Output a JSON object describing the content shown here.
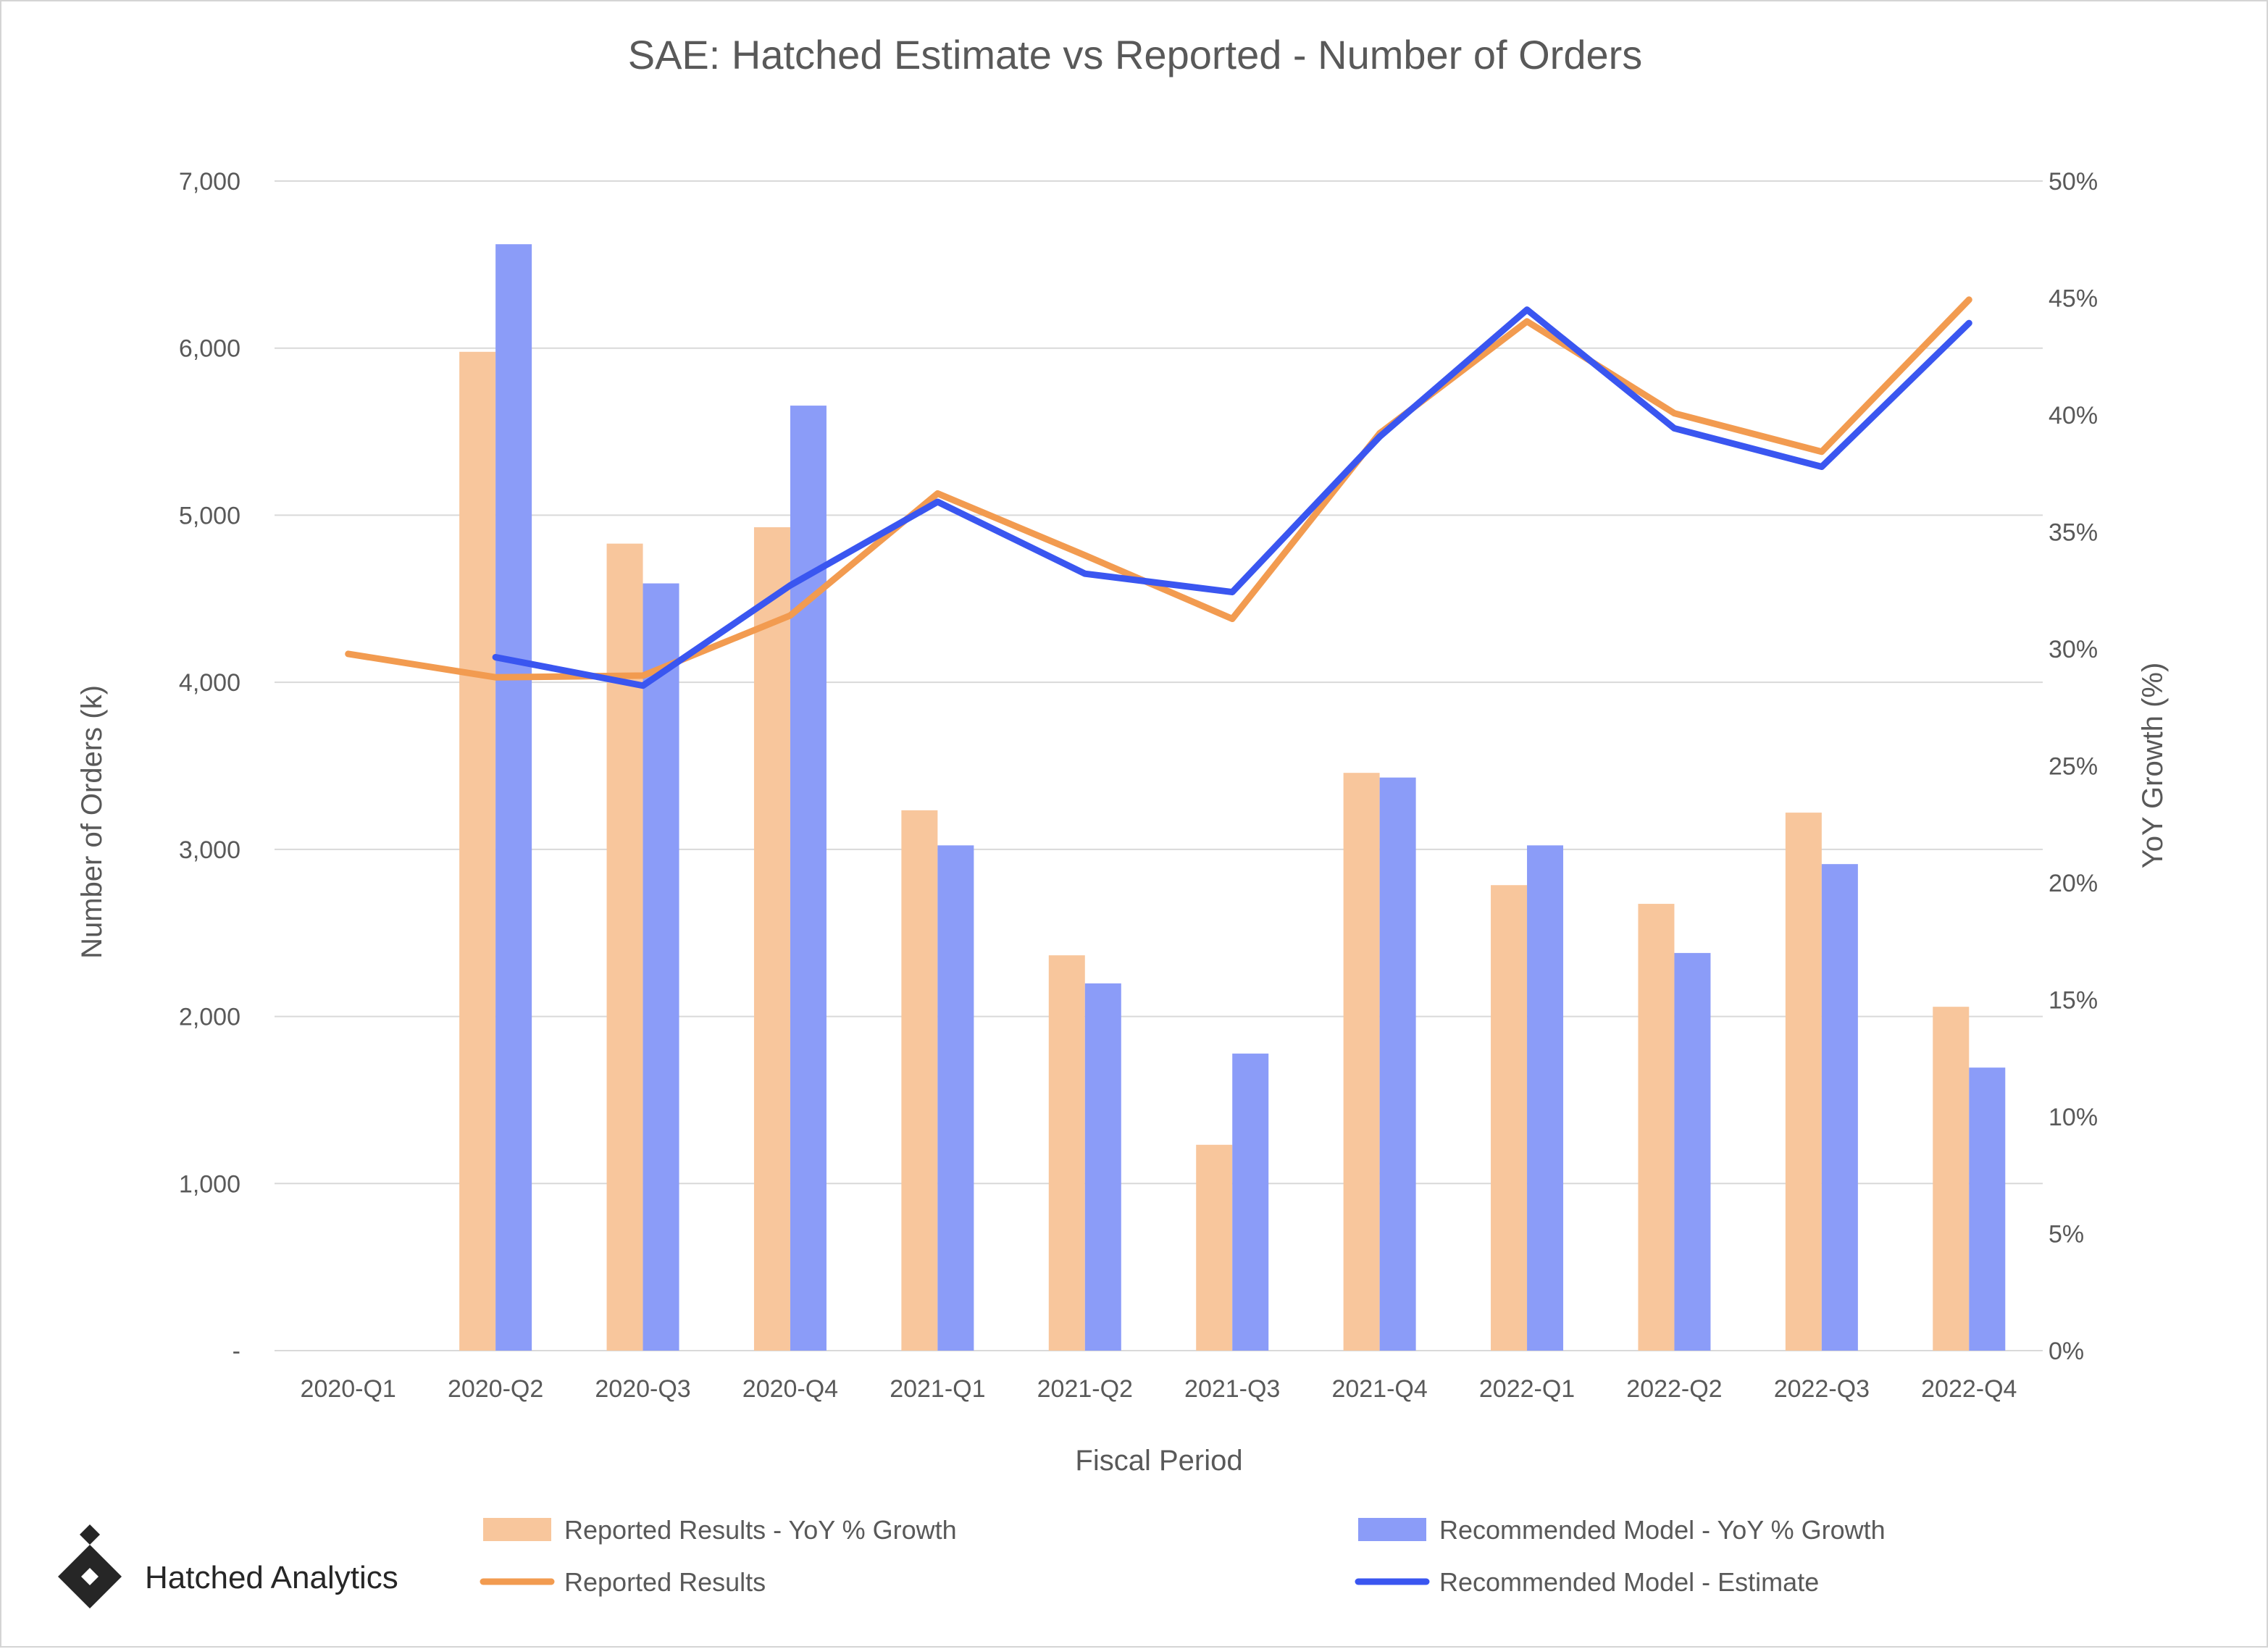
{
  "brand": {
    "name": "Hatched Analytics",
    "logo_icon": "hatched-diamond-icon"
  },
  "chart_data": {
    "type": "bar",
    "title": "SAE: Hatched Estimate vs Reported - Number of Orders",
    "xlabel": "Fiscal Period",
    "ylabel": "Number of Orders (k)",
    "y2label": "YoY Growth (%)",
    "categories": [
      "2020-Q1",
      "2020-Q2",
      "2020-Q3",
      "2020-Q4",
      "2021-Q1",
      "2021-Q2",
      "2021-Q3",
      "2021-Q4",
      "2022-Q1",
      "2022-Q2",
      "2022-Q3",
      "2022-Q4"
    ],
    "ylim": [
      0,
      7000
    ],
    "y_ticks": [
      0,
      1000,
      2000,
      3000,
      4000,
      5000,
      6000,
      7000
    ],
    "y_tick_labels": [
      "-",
      "1,000",
      "2,000",
      "3,000",
      "4,000",
      "5,000",
      "6,000",
      "7,000"
    ],
    "y2lim": [
      0,
      50
    ],
    "y2_ticks": [
      0,
      5,
      10,
      15,
      20,
      25,
      30,
      35,
      40,
      45,
      50
    ],
    "y2_tick_labels": [
      "0%",
      "5%",
      "10%",
      "15%",
      "20%",
      "25%",
      "30%",
      "35%",
      "40%",
      "45%",
      "50%"
    ],
    "grid": true,
    "legend_position": "bottom",
    "series": [
      {
        "name": "Reported Results - YoY % Growth",
        "kind": "bar",
        "axis": "y2",
        "color": "#F8C69C",
        "values": [
          null,
          42.7,
          34.5,
          35.2,
          23.1,
          16.9,
          8.8,
          24.7,
          19.9,
          19.1,
          23.0,
          14.7
        ]
      },
      {
        "name": "Recommended Model - YoY % Growth",
        "kind": "bar",
        "axis": "y2",
        "color": "#8B9CF8",
        "values": [
          null,
          47.3,
          32.8,
          40.4,
          21.6,
          15.7,
          12.7,
          24.5,
          21.6,
          17.0,
          20.8,
          12.1
        ]
      },
      {
        "name": "Reported Results",
        "kind": "line",
        "axis": "y",
        "color": "#F29B50",
        "values": [
          4170,
          4030,
          4040,
          4400,
          5130,
          4760,
          4380,
          5490,
          6160,
          5610,
          5380,
          6290
        ]
      },
      {
        "name": "Recommended Model - Estimate",
        "kind": "line",
        "axis": "y",
        "color": "#3A56F0",
        "values": [
          null,
          4150,
          3980,
          4580,
          5080,
          4650,
          4540,
          5470,
          6230,
          5520,
          5290,
          6150
        ]
      }
    ]
  }
}
